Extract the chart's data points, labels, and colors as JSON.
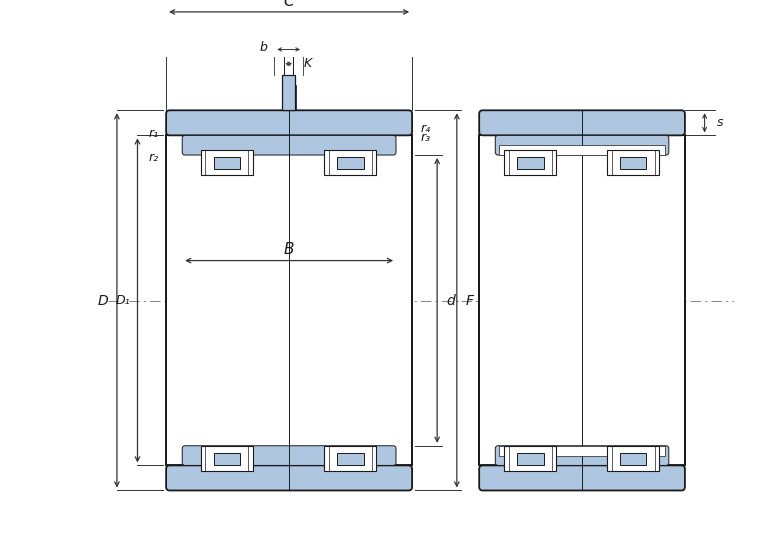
{
  "bg_color": "#ffffff",
  "lc": "#1a1a1a",
  "fc": "#aec6e0",
  "dc": "#333333",
  "cc": "#888888",
  "figsize": [
    7.75,
    5.5
  ],
  "dpi": 100,
  "labels": {
    "C": "C",
    "b": "b",
    "K": "K",
    "r4": "r₄",
    "r3": "r₃",
    "r1": "r₁",
    "r2": "r₂",
    "B": "B",
    "D": "D",
    "D1": "D₁",
    "d": "d",
    "F": "F",
    "s": "s"
  }
}
